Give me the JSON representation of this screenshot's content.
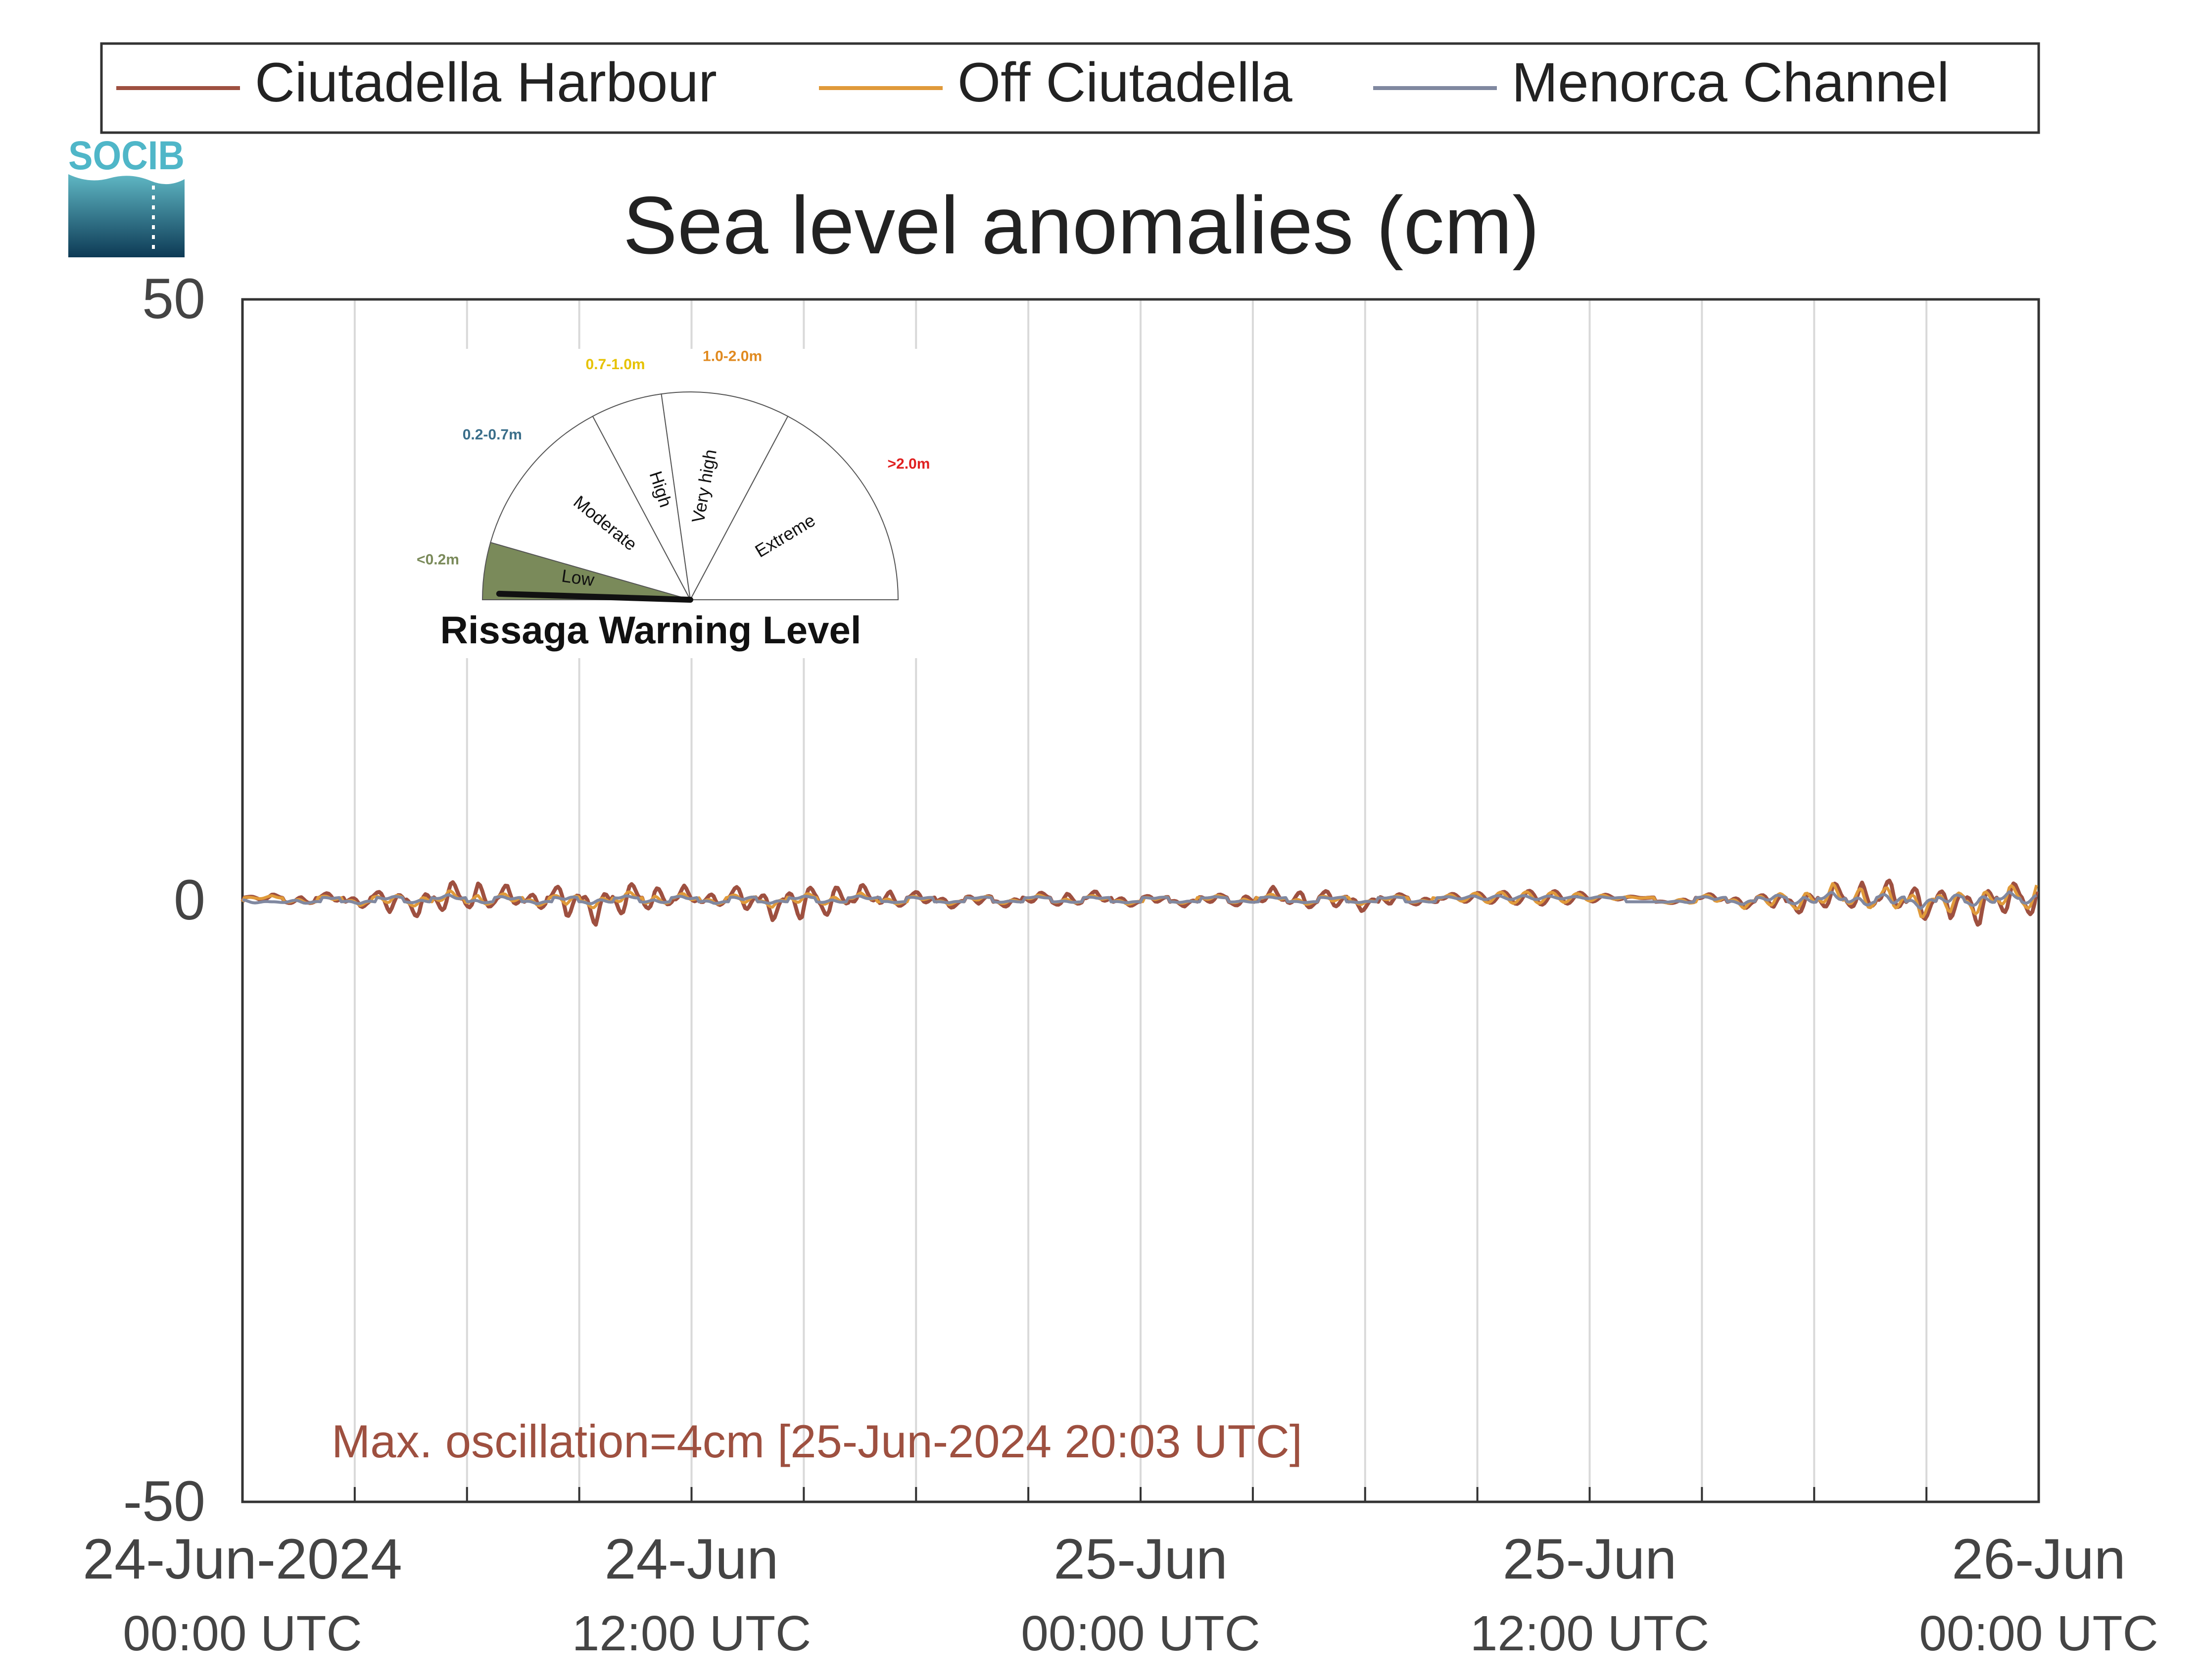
{
  "logo": {
    "text": "SOCIB"
  },
  "legend": {
    "entries": [
      {
        "label": "Ciutadella Harbour",
        "color": "#9e5040"
      },
      {
        "label": "Off Ciutadella",
        "color": "#e09a3a"
      },
      {
        "label": "Menorca Channel",
        "color": "#8088a0"
      }
    ]
  },
  "chart_data": {
    "type": "line",
    "title": "Sea level anomalies (cm)",
    "xlabel": "",
    "ylabel": "",
    "ylim": [
      -50,
      50
    ],
    "xlim_hours": [
      0,
      48
    ],
    "y_ticks": [
      "50",
      "0",
      "-50"
    ],
    "x_ticks": [
      {
        "hour": 0,
        "date": "24-Jun-2024",
        "time": "00:00 UTC"
      },
      {
        "hour": 12,
        "date": "24-Jun",
        "time": "12:00 UTC"
      },
      {
        "hour": 24,
        "date": "25-Jun",
        "time": "00:00 UTC"
      },
      {
        "hour": 36,
        "date": "25-Jun",
        "time": "12:00 UTC"
      },
      {
        "hour": 48,
        "date": "26-Jun",
        "time": "00:00 UTC"
      }
    ],
    "grid": true,
    "legend_position": "top",
    "series": [
      {
        "name": "Ciutadella Harbour",
        "color": "#9e5040",
        "values": [
          0,
          0.3,
          -0.4,
          0.5,
          -0.6,
          1.2,
          -1.5,
          1.8,
          -1.6,
          1.2,
          -1,
          1.8,
          -2,
          1.9,
          -1.4,
          1,
          -0.8,
          1.4,
          -1.6,
          2,
          -1.8,
          1.2,
          -0.9,
          0.7,
          -0.6,
          0.5,
          -0.5,
          0.6,
          -0.7,
          0.6,
          -0.5,
          0.4,
          -0.4,
          0.5,
          -0.6,
          0.9,
          -1,
          1,
          -0.8,
          0.6,
          -0.4,
          0.3,
          0.4,
          0.5,
          0.6,
          0.5,
          0.3,
          0.1,
          0,
          -0.2,
          0.4,
          -0.6,
          0.8,
          -1.2,
          1.5,
          -1.6,
          1.8,
          -2,
          1.8,
          -2.2,
          2,
          -2.4
        ]
      },
      {
        "name": "Off Ciutadella",
        "color": "#e09a3a",
        "values": [
          0,
          0.2,
          -0.3,
          0.3,
          -0.4,
          0.6,
          -0.7,
          0.8,
          -0.7,
          0.6,
          -0.5,
          0.7,
          -0.8,
          0.8,
          -0.6,
          0.5,
          -0.4,
          0.6,
          -0.6,
          0.7,
          -0.6,
          0.5,
          -0.4,
          0.3,
          -0.3,
          0.3,
          -0.3,
          0.3,
          -0.3,
          0.3,
          -0.3,
          0.2,
          -0.2,
          0.3,
          -0.3,
          0.4,
          -0.4,
          0.4,
          -0.3,
          0.3,
          -0.2,
          0.3,
          0.5,
          0.6,
          0.6,
          0.5,
          0.3,
          0.1,
          0,
          -0.3,
          0.5,
          -0.7,
          1,
          -1.3,
          1.5,
          -1.6,
          1.7,
          -1.8,
          1.6,
          -1.8,
          1.6,
          -2.2
        ]
      },
      {
        "name": "Menorca Channel",
        "color": "#8088a0",
        "values": [
          -0.2,
          0,
          -0.2,
          0.1,
          -0.2,
          0.2,
          -0.2,
          0.3,
          -0.2,
          0.2,
          -0.2,
          0.2,
          -0.3,
          0.2,
          -0.2,
          0.2,
          -0.2,
          0.2,
          -0.2,
          0.2,
          -0.2,
          0.2,
          -0.1,
          0.1,
          -0.1,
          0.1,
          -0.1,
          0.1,
          -0.1,
          0.1,
          -0.1,
          0.1,
          -0.1,
          0.1,
          -0.1,
          0.1,
          -0.1,
          0.1,
          -0.1,
          0.1,
          -0.1,
          0.1,
          0.2,
          0.2,
          0.2,
          0.1,
          0.1,
          0,
          0,
          -0.1,
          0.2,
          -0.3,
          0.4,
          -0.5,
          0.6,
          -0.6,
          0.7,
          -0.7,
          0.6,
          -0.7,
          0.6,
          -0.8
        ]
      }
    ],
    "annotation": "Max. oscillation=4cm [25-Jun-2024 20:03 UTC]",
    "annotation_color": "#9e5040"
  },
  "gauge": {
    "title": "Rissaga Warning Level",
    "current_level": "Low",
    "sectors": [
      {
        "label": "Low",
        "range": "<0.2m",
        "range_color": "#7a8a5a",
        "fill": "#7a8a5a"
      },
      {
        "label": "Moderate",
        "range": "0.2-0.7m",
        "range_color": "#3a6e8a",
        "fill": "#ffffff"
      },
      {
        "label": "High",
        "range": "0.7-1.0m",
        "range_color": "#e6c200",
        "fill": "#ffffff"
      },
      {
        "label": "Very high",
        "range": "1.0-2.0m",
        "range_color": "#e08a20",
        "fill": "#ffffff"
      },
      {
        "label": "Extreme",
        "range": ">2.0m",
        "range_color": "#e02020",
        "fill": "#ffffff"
      }
    ]
  }
}
